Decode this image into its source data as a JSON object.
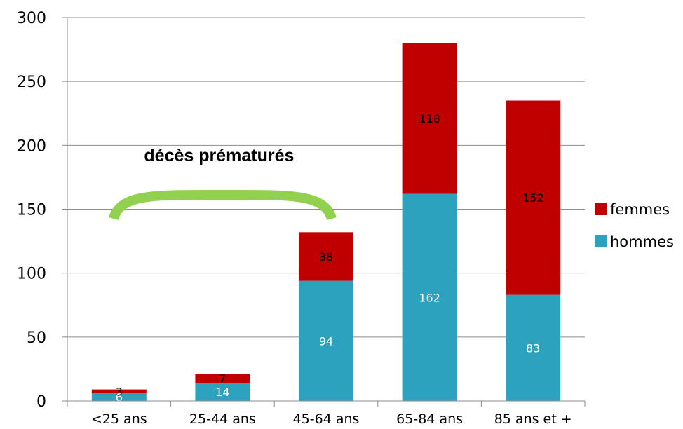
{
  "chart_data": {
    "type": "bar",
    "stacked": true,
    "categories": [
      "<25 ans",
      "25-44 ans",
      "45-64 ans",
      "65-84 ans",
      "85 ans et +"
    ],
    "series": [
      {
        "name": "hommes",
        "values": [
          6,
          14,
          94,
          162,
          83
        ],
        "color": "#2CA2BF",
        "label_color": "#FFFFFF"
      },
      {
        "name": "femmes",
        "values": [
          3,
          7,
          38,
          118,
          152
        ],
        "color": "#C00000",
        "label_color": "#000000"
      }
    ],
    "ylim": [
      0,
      300
    ],
    "yticks": [
      0,
      50,
      100,
      150,
      200,
      250,
      300
    ],
    "grid": true,
    "legend_position": "right",
    "annotation": {
      "text": "décès prématurés",
      "spans": [
        "<25 ans",
        "45-64 ans"
      ],
      "arc_color": "#92D050"
    }
  }
}
